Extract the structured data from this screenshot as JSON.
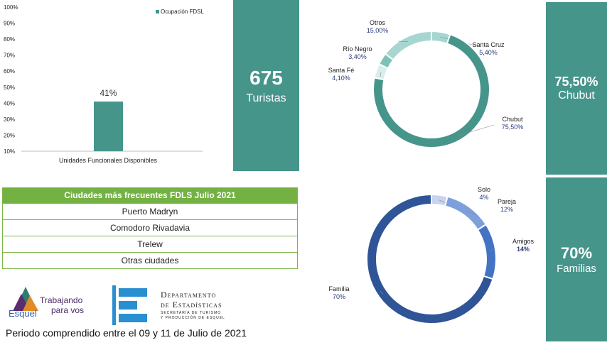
{
  "bar_chart": {
    "legend": "Ocupación FDSL",
    "value_label": "41%",
    "category": "Unidades Funcionales Disponibles",
    "y_ticks": [
      "100%",
      "90%",
      "80%",
      "70%",
      "60%",
      "50%",
      "40%",
      "30%",
      "20%",
      "10%"
    ]
  },
  "kpi_tourists": {
    "value": "675",
    "label": "Turistas"
  },
  "kpi_chubut": {
    "value": "75,50%",
    "label": "Chubut"
  },
  "kpi_families": {
    "value": "70%",
    "label": "Familias"
  },
  "cities_table": {
    "title": "Ciudades más frecuentes FDLS  Julio 2021",
    "rows": [
      "Puerto Madryn",
      "Comodoro Rivadavia",
      "Trelew",
      "Otras ciudades"
    ]
  },
  "footer": {
    "period": "Periodo comprendido entre el 09 y 11 de Julio de 2021",
    "logo_esquel_line1": "Trabajando",
    "logo_esquel_line2": "para vos",
    "logo_esquel_name": "Esquel",
    "dept_line1": "Departamento",
    "dept_line2": "de Estadísticas",
    "dept_sub1": "SECRETARÍA DE TURISMO",
    "dept_sub2": "Y PRODUCCIÓN DE ESQUEL"
  },
  "chart_data": [
    {
      "type": "bar",
      "categories": [
        "Unidades Funcionales Disponibles"
      ],
      "series": [
        {
          "name": "Ocupación FDSL",
          "values": [
            41
          ]
        }
      ],
      "ylim": [
        10,
        100
      ],
      "color": "#46958b"
    },
    {
      "type": "pie",
      "labels": [
        "Santa Cruz",
        "Chubut",
        "Santa Fé",
        "Río Negro",
        "Otros"
      ],
      "label_texts": [
        "Santa Cruz",
        "Chubut",
        "Santa Fé",
        "Río Negro",
        "Otros"
      ],
      "values": [
        5.4,
        75.5,
        4.1,
        3.4,
        15.0
      ],
      "value_texts": [
        "5,40%",
        "75,50%",
        "4,10%",
        "3,40%",
        "15,00%"
      ],
      "colors": [
        "#a6d6cf",
        "#46958b",
        "#d8eeea",
        "#7cc2b7",
        "#a6d6cf"
      ]
    },
    {
      "type": "pie",
      "labels": [
        "Solo",
        "Pareja",
        "Amigos",
        "Familia"
      ],
      "label_texts": [
        "Solo",
        "Pareja",
        "Amigos",
        "Familia"
      ],
      "values": [
        4,
        12,
        14,
        70
      ],
      "value_texts": [
        "4%",
        "12%",
        "14%",
        "70%"
      ],
      "colors": [
        "#c6d4ef",
        "#7d9fdb",
        "#4473c4",
        "#2f5597"
      ]
    }
  ]
}
